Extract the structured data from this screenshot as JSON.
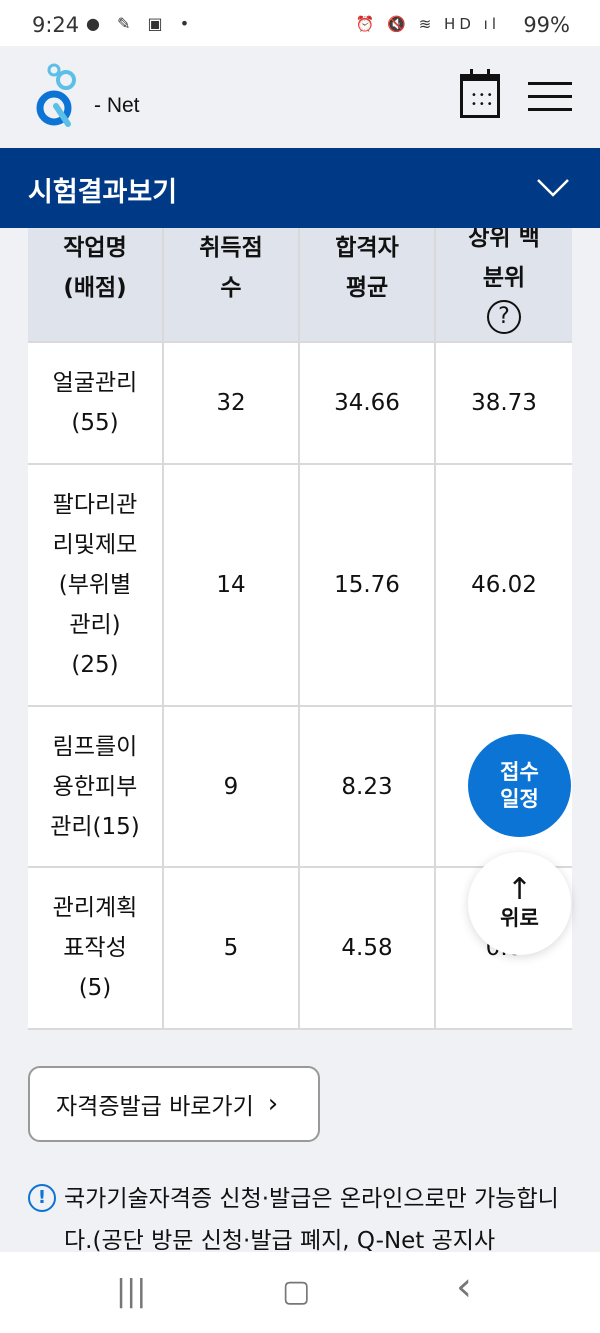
{
  "status_bar": {
    "time": "9:24",
    "battery": "99%",
    "left_icons": [
      "kakaotalk-icon",
      "app-icon",
      "image-icon",
      "dot-icon"
    ],
    "right_icons": [
      "alarm-icon",
      "mute-icon",
      "wifi-icon",
      "hd-voice-icon",
      "signal-icon",
      "battery-icon"
    ]
  },
  "header": {
    "logo_text": "- Net"
  },
  "section_bar": {
    "title": "시험결과보기"
  },
  "table": {
    "headers": [
      "작업명\n(배점)",
      "취득점\n수",
      "합격자\n평균",
      "상위 백\n분위"
    ],
    "help_icon": "?",
    "rows": [
      [
        "얼굴관리\n(55)",
        "32",
        "34.66",
        "38.73"
      ],
      [
        "팔다리관\n리및제모\n(부위별\n관리)\n(25)",
        "14",
        "15.76",
        "46.02"
      ],
      [
        "림프를이\n용한피부\n관리(15)",
        "9",
        "8.23",
        ""
      ],
      [
        "관리계획\n표작성\n(5)",
        "5",
        "4.58",
        "0.0"
      ]
    ]
  },
  "fabs": {
    "schedule": "접수\n일정",
    "top": "위로",
    "top_arrow": "↑"
  },
  "cert_button": {
    "label": "자격증발급 바로가기",
    "chevron": "›"
  },
  "notice": {
    "text": "국가기술자격증 신청·발급은 온라인으로만 가능합니다.(공단 방문 신청·발급 폐지, Q-Net 공지사"
  },
  "nav": {
    "recents": "|||",
    "home": "▢",
    "back": "‹"
  },
  "colors": {
    "primary": "#003986",
    "accent": "#0c74d4",
    "header_cell": "#dfe3ec"
  }
}
